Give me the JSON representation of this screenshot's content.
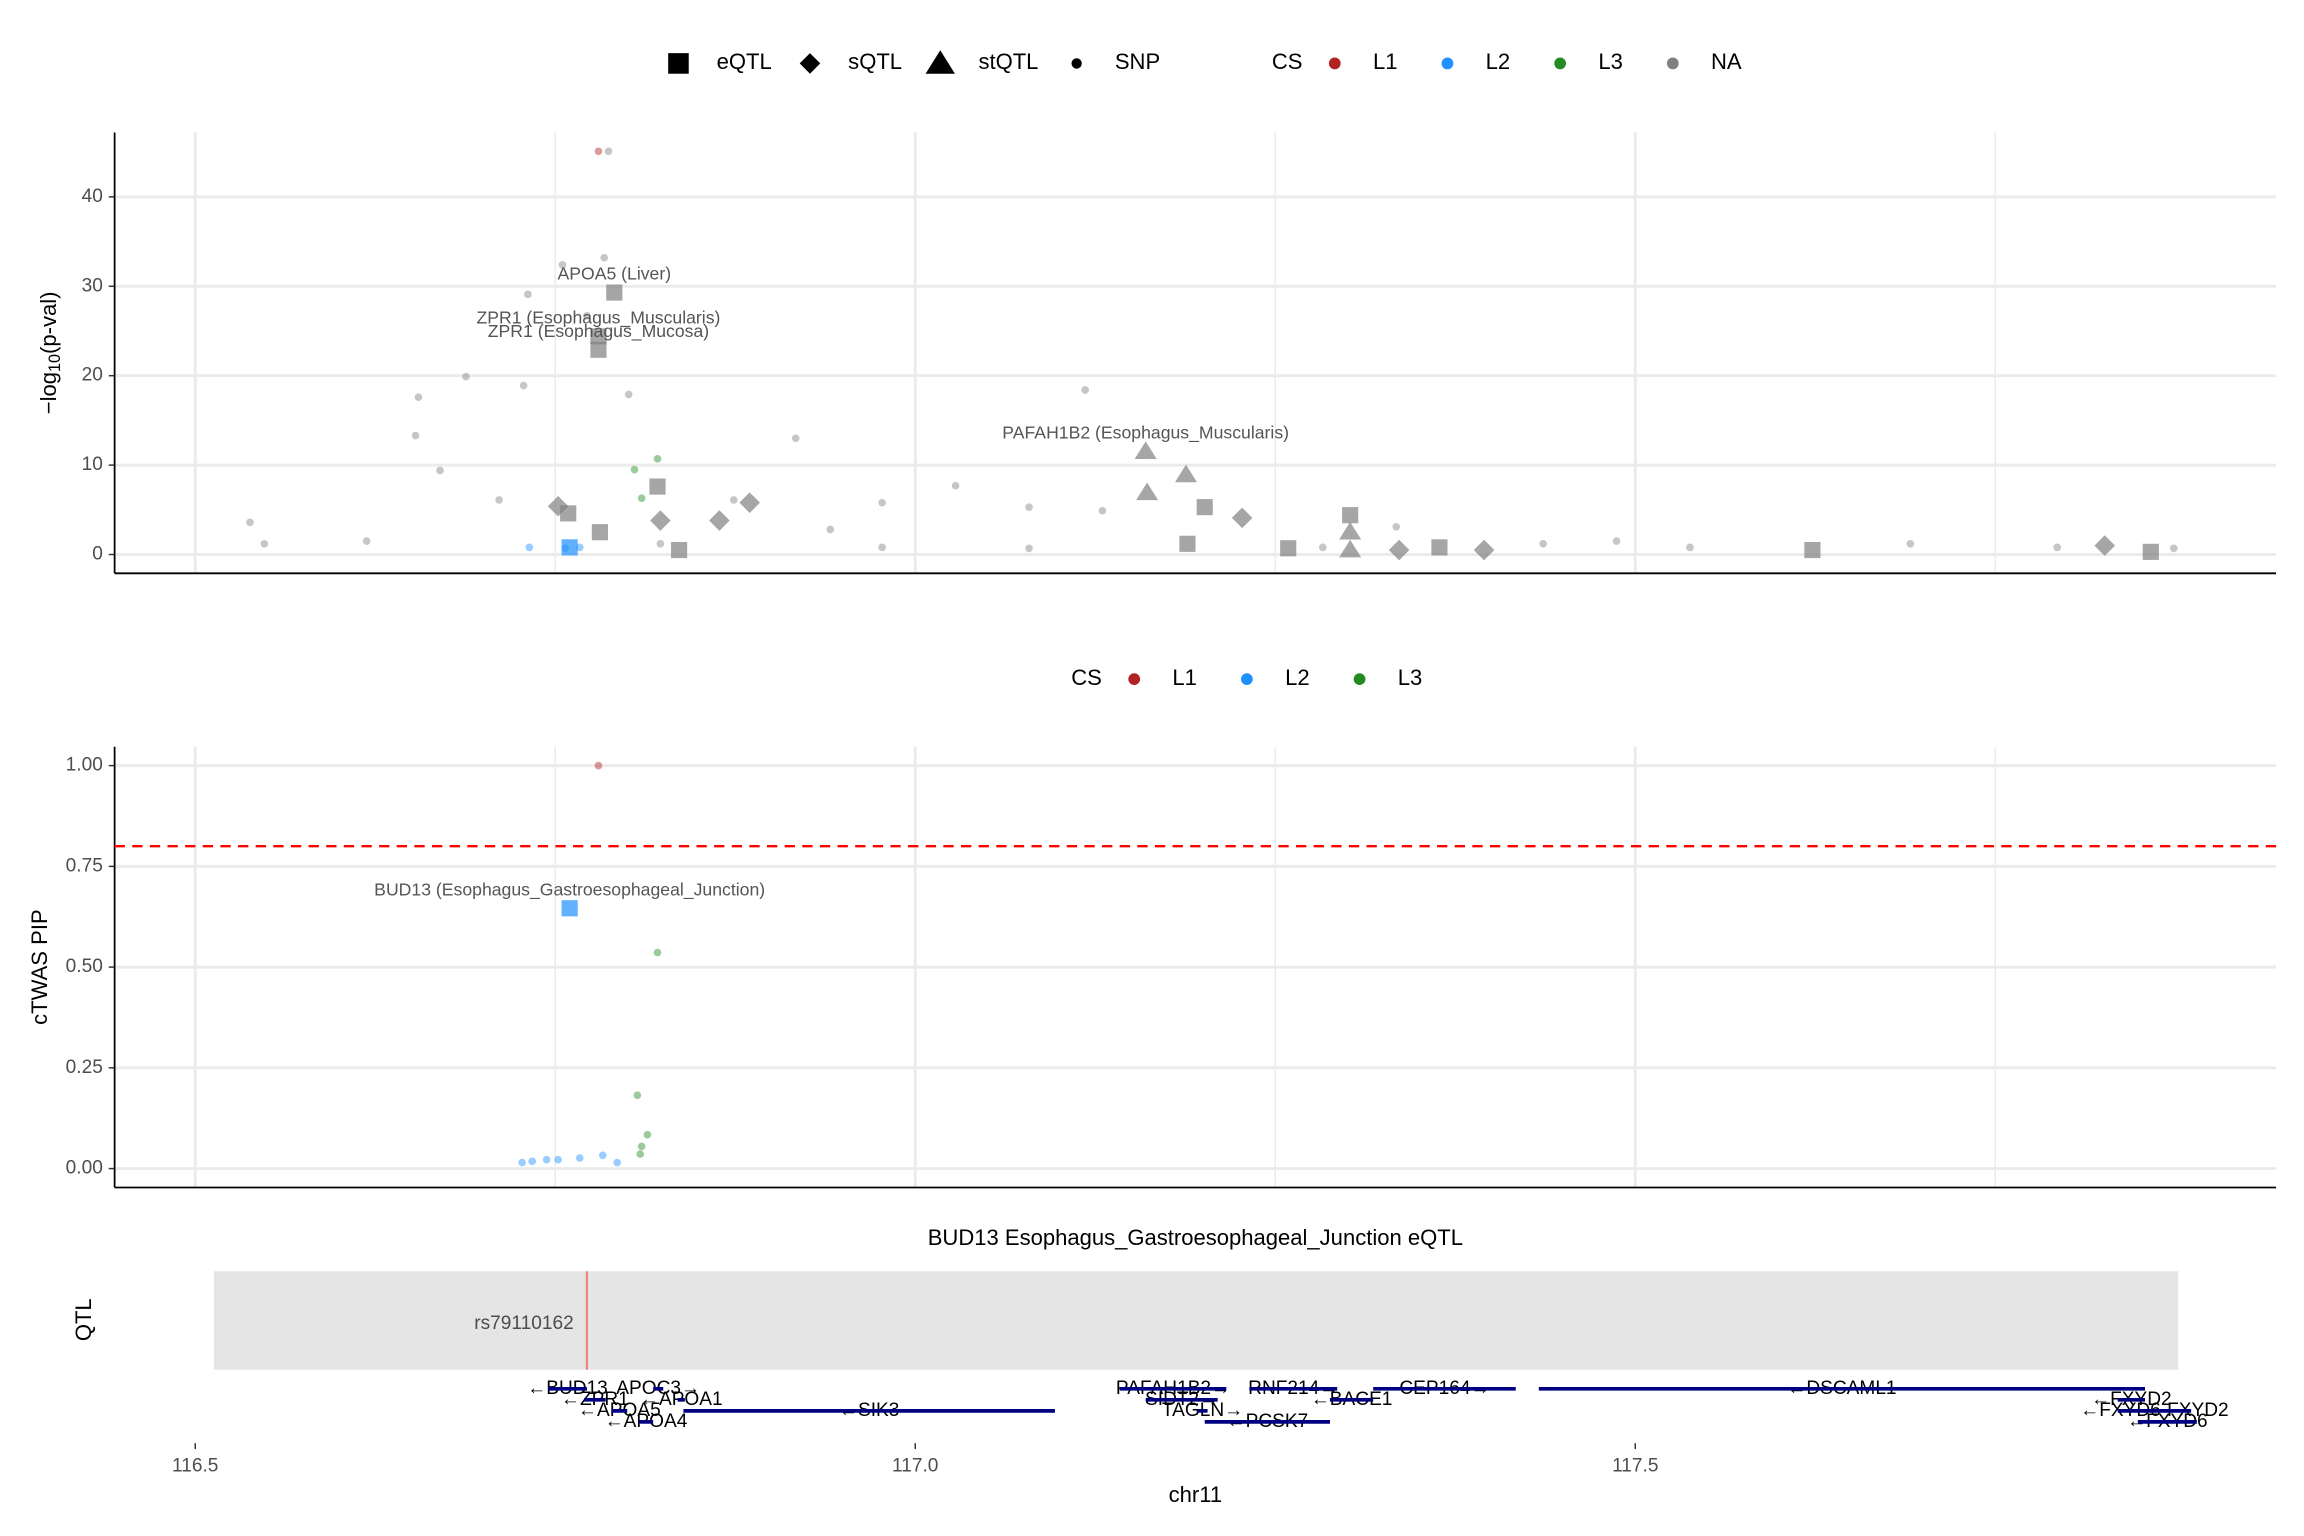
{
  "chart_data": [
    {
      "type": "scatter",
      "legend": {
        "shape_names": [
          "eQTL",
          "sQTL",
          "stQTL",
          "SNP"
        ],
        "cs_title": "CS",
        "cs_names": [
          "L1",
          "L2",
          "L3",
          "NA"
        ],
        "cs_colors": [
          "#b22222",
          "#1e90ff",
          "#228b22",
          "#808080"
        ]
      },
      "ylabel": {
        "main": "−log",
        "sub": "10",
        "rest": "(p-val)"
      },
      "xlim": [
        116.444,
        117.945
      ],
      "xticks": [
        116.5,
        117,
        117.5
      ],
      "xminor": [
        116.75,
        117.25,
        117.75
      ],
      "ylim": [
        -2.1,
        47.2
      ],
      "yticks": [
        0,
        10,
        20,
        30,
        40
      ],
      "grid": true,
      "x": [
        116.78,
        116.791,
        116.78,
        116.78,
        117.16,
        116.821,
        116.759,
        116.781,
        116.836,
        117.302,
        117.364,
        117.201,
        117.623,
        117.858,
        117.189,
        117.259,
        116.752,
        116.823,
        116.864,
        116.885,
        117.227,
        117.336,
        117.395,
        117.826,
        117.188,
        117.161,
        117.302,
        117.302,
        116.732,
        116.757,
        116.767,
        116.76,
        116.81,
        116.805,
        116.821,
        117.118,
        116.787,
        116.653,
        116.655,
        116.688,
        116.731,
        116.755,
        116.784,
        116.772,
        116.801,
        116.728,
        116.67,
        116.711,
        116.874,
        116.977,
        117.079,
        117.13,
        116.917,
        117.028,
        116.548,
        116.619,
        117.436,
        117.538,
        117.691,
        117.793,
        117.874,
        116.538,
        116.941,
        117.334,
        117.487,
        117.283,
        116.977,
        116.823,
        117.079
      ],
      "values": [
        45.1,
        29.3,
        24.4,
        22.9,
        11.5,
        7.6,
        4.6,
        2.5,
        0.5,
        4.4,
        0.8,
        5.3,
        0.5,
        0.3,
        1.2,
        0.7,
        5.4,
        3.8,
        3.8,
        5.8,
        4.1,
        0.5,
        0.5,
        1.0,
        8.9,
        6.9,
        2.5,
        0.5,
        0.8,
        0.7,
        0.8,
        0.8,
        6.3,
        9.5,
        10.7,
        18.4,
        45.1,
        13.3,
        17.6,
        19.9,
        29.1,
        32.4,
        33.2,
        26.7,
        17.9,
        18.9,
        9.4,
        6.1,
        6.1,
        5.8,
        5.3,
        4.9,
        13,
        7.7,
        1.2,
        1.5,
        1.2,
        0.8,
        1.2,
        0.8,
        0.7,
        3.6,
        2.8,
        3.1,
        1.5,
        0.8,
        0.8,
        1.2,
        0.7
      ],
      "shape": [
        "SNP",
        "eQTL",
        "eQTL",
        "eQTL",
        "stQTL",
        "eQTL",
        "eQTL",
        "eQTL",
        "eQTL",
        "eQTL",
        "eQTL",
        "eQTL",
        "eQTL",
        "eQTL",
        "eQTL",
        "eQTL",
        "sQTL",
        "sQTL",
        "sQTL",
        "sQTL",
        "sQTL",
        "sQTL",
        "sQTL",
        "sQTL",
        "stQTL",
        "stQTL",
        "stQTL",
        "stQTL",
        "SNP",
        "SNP",
        "SNP",
        "eQTL",
        "SNP",
        "SNP",
        "SNP",
        "SNP",
        "SNP",
        "SNP",
        "SNP",
        "SNP",
        "SNP",
        "SNP",
        "SNP",
        "SNP",
        "SNP",
        "SNP",
        "SNP",
        "SNP",
        "SNP",
        "SNP",
        "SNP",
        "SNP",
        "SNP",
        "SNP",
        "SNP",
        "SNP",
        "SNP",
        "SNP",
        "SNP",
        "SNP",
        "SNP",
        "SNP",
        "SNP",
        "SNP",
        "SNP",
        "SNP",
        "SNP",
        "SNP",
        "SNP"
      ],
      "cs": [
        "L1",
        "NA",
        "NA",
        "NA",
        "NA",
        "NA",
        "NA",
        "NA",
        "NA",
        "NA",
        "NA",
        "NA",
        "NA",
        "NA",
        "NA",
        "NA",
        "NA",
        "NA",
        "NA",
        "NA",
        "NA",
        "NA",
        "NA",
        "NA",
        "NA",
        "NA",
        "NA",
        "NA",
        "L2",
        "L2",
        "L2",
        "L2",
        "L3",
        "L3",
        "L3",
        "NA",
        "NA",
        "NA",
        "NA",
        "NA",
        "NA",
        "NA",
        "NA",
        "NA",
        "NA",
        "NA",
        "NA",
        "NA",
        "NA",
        "NA",
        "NA",
        "NA",
        "NA",
        "NA",
        "NA",
        "NA",
        "NA",
        "NA",
        "NA",
        "NA",
        "NA",
        "NA",
        "NA",
        "NA",
        "NA",
        "NA",
        "NA",
        "NA",
        "NA"
      ],
      "annotations": [
        {
          "text": "APOA5 (Liver)",
          "x": 116.791,
          "y": 29.3
        },
        {
          "text": "ZPR1 (Esophagus_Muscularis)",
          "x": 116.78,
          "y": 24.4
        },
        {
          "text": "ZPR1 (Esophagus_Mucosa)",
          "x": 116.78,
          "y": 22.9
        },
        {
          "text": "PAFAH1B2 (Esophagus_Muscularis)",
          "x": 117.16,
          "y": 11.5
        }
      ]
    },
    {
      "type": "scatter",
      "legend": {
        "cs_title": "CS",
        "cs_names": [
          "L1",
          "L2",
          "L3"
        ],
        "cs_colors": [
          "#b22222",
          "#1e90ff",
          "#228b22"
        ]
      },
      "ylabel": "cTWAS PIP",
      "xlim": [
        116.444,
        117.945
      ],
      "xticks": [
        116.5,
        117,
        117.5
      ],
      "xminor": [
        116.75,
        117.25,
        117.75
      ],
      "ylim": [
        -0.047,
        1.047
      ],
      "yticks": [
        {
          "value": 0,
          "label": "0.00"
        },
        {
          "value": 0.25,
          "label": "0.25"
        },
        {
          "value": 0.5,
          "label": "0.50"
        },
        {
          "value": 0.75,
          "label": "0.75"
        },
        {
          "value": 1,
          "label": "1.00"
        }
      ],
      "grid": true,
      "hline": {
        "value": 0.8,
        "color": "#ff0000"
      },
      "x": [
        116.78,
        116.76,
        116.821,
        116.807,
        116.814,
        116.81,
        116.809,
        116.727,
        116.734,
        116.744,
        116.752,
        116.767,
        116.783,
        116.793
      ],
      "values": [
        1.0,
        0.646,
        0.536,
        0.182,
        0.084,
        0.055,
        0.036,
        0.015,
        0.018,
        0.022,
        0.022,
        0.026,
        0.033,
        0.015
      ],
      "shape": [
        "SNP",
        "eQTL",
        "SNP",
        "SNP",
        "SNP",
        "SNP",
        "SNP",
        "SNP",
        "SNP",
        "SNP",
        "SNP",
        "SNP",
        "SNP",
        "SNP"
      ],
      "cs": [
        "L1",
        "L2",
        "L3",
        "L3",
        "L3",
        "L3",
        "L3",
        "L2",
        "L2",
        "L2",
        "L2",
        "L2",
        "L2",
        "L2"
      ],
      "annotations": [
        {
          "text": "BUD13 (Esophagus_Gastroesophageal_Junction)",
          "x": 116.76,
          "y": 0.646
        }
      ]
    },
    {
      "type": "track",
      "title": "BUD13 Esophagus_Gastroesophageal_Junction eQTL",
      "ylabel": "QTL",
      "region": [
        116.513,
        117.877
      ],
      "region_color": "#e5e5e5",
      "snp": {
        "x": 116.772,
        "label": "rs79110162",
        "color": "#f08080"
      },
      "gene_color": "#000080",
      "genes": [
        {
          "label": "←BUD13",
          "start": 116.745,
          "end": 116.772
        },
        {
          "label": "←ZPR1",
          "start": 116.77,
          "end": 116.785
        },
        {
          "label": "←APOA5",
          "start": 116.789,
          "end": 116.8
        },
        {
          "label": "←APOA4",
          "start": 116.808,
          "end": 116.818
        },
        {
          "label": "APOC3→",
          "start": 116.818,
          "end": 116.825
        },
        {
          "label": "←APOA1",
          "start": 116.835,
          "end": 116.84
        },
        {
          "label": "←SIK3",
          "start": 116.839,
          "end": 117.097
        },
        {
          "label": "PAFAH1B2→",
          "start": 117.142,
          "end": 117.216
        },
        {
          "label": "SIDT2→",
          "start": 117.16,
          "end": 117.21
        },
        {
          "label": "TAGLN→",
          "start": 117.196,
          "end": 117.203
        },
        {
          "label": "←PCSK7",
          "start": 117.201,
          "end": 117.288
        },
        {
          "label": "RNF214→",
          "start": 117.232,
          "end": 117.293
        },
        {
          "label": "←BACE1",
          "start": 117.288,
          "end": 117.318
        },
        {
          "label": "CEP164→",
          "start": 117.318,
          "end": 117.417
        },
        {
          "label": "←DSCAML1",
          "start": 117.433,
          "end": 117.854
        },
        {
          "label": "←FXYD2",
          "start": 117.835,
          "end": 117.854
        },
        {
          "label": "←FXYD6-FXYD2",
          "start": 117.835,
          "end": 117.886
        },
        {
          "label": "←FXYD6",
          "start": 117.849,
          "end": 117.89
        }
      ],
      "xlim": [
        116.444,
        117.945
      ],
      "xticks": [
        116.5,
        {
          "value": 117,
          "label": "117.0"
        },
        117.5
      ],
      "xlabel": "chr11"
    }
  ]
}
